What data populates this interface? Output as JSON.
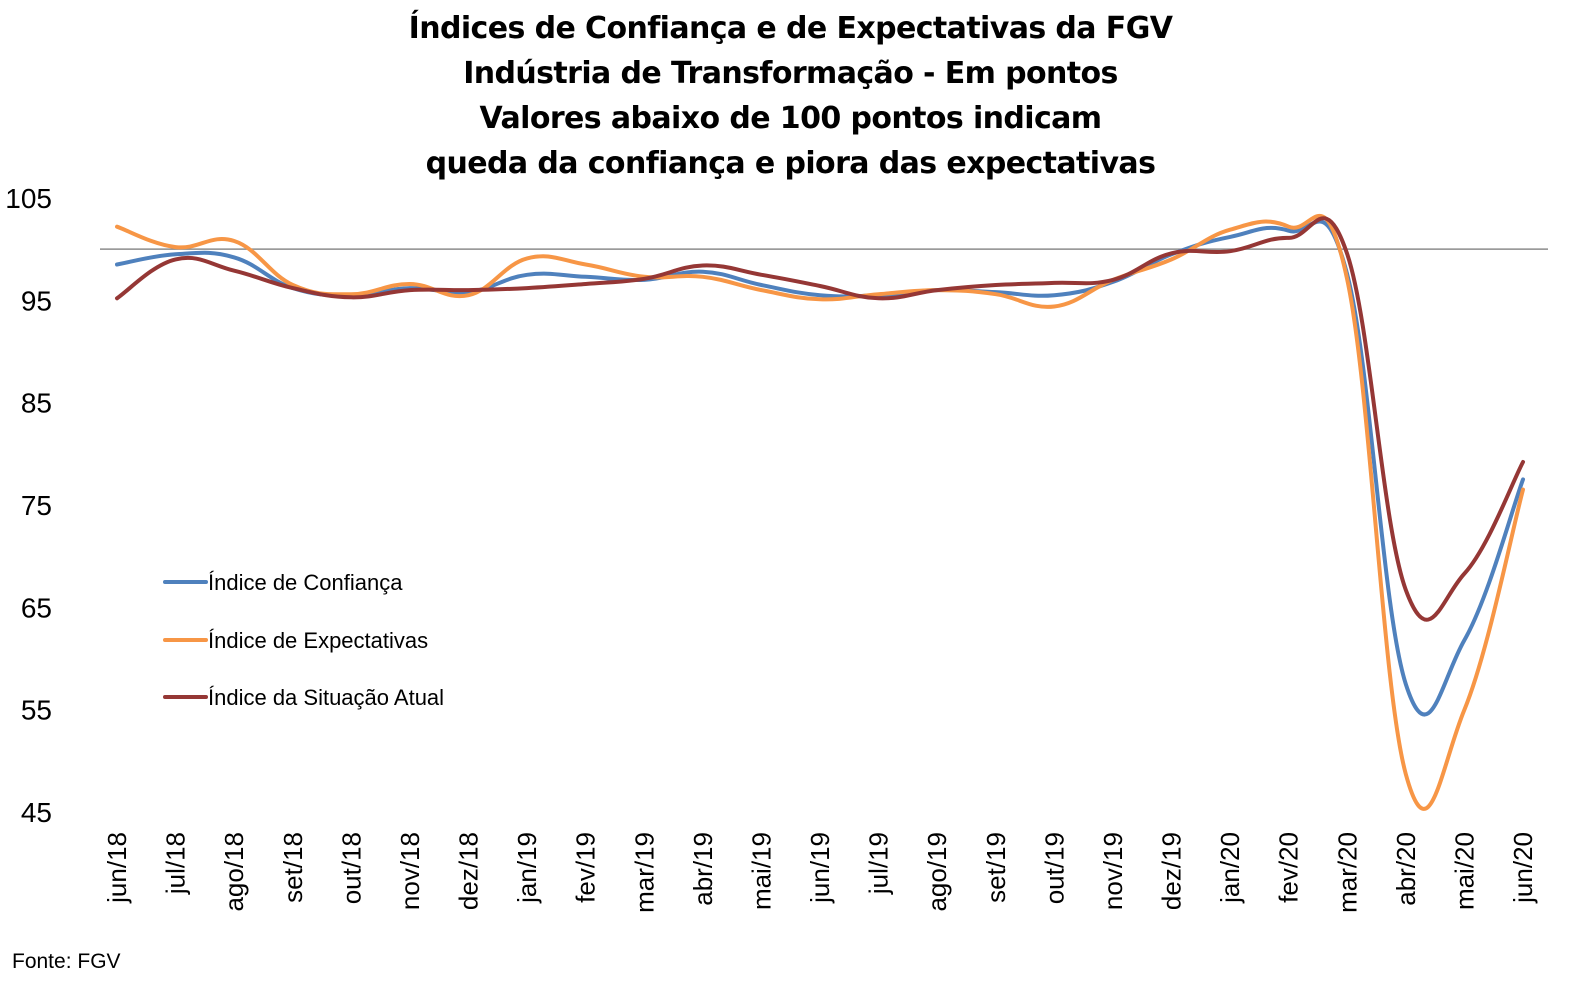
{
  "chart_data": {
    "type": "line",
    "title_lines": [
      "Índices de Confiança e de Expectativas da FGV",
      "Indústria de Transformação - Em pontos",
      "Valores abaixo de 100 pontos indicam",
      "queda da confiança e piora das expectativas"
    ],
    "xlabel": "",
    "ylabel": "",
    "ylim": [
      45,
      105
    ],
    "y_ticks": [
      105,
      95,
      85,
      75,
      65,
      55,
      45
    ],
    "reference_line": 100,
    "grid": false,
    "legend_placement": "left",
    "categories": [
      "jun/18",
      "jul/18",
      "ago/18",
      "set/18",
      "out/18",
      "nov/18",
      "dez/18",
      "jan/19",
      "fev/19",
      "mar/19",
      "abr/19",
      "mai/19",
      "jun/19",
      "jul/19",
      "ago/19",
      "set/19",
      "out/19",
      "nov/19",
      "dez/19",
      "jan/20",
      "fev/20",
      "mar/20",
      "abr/20",
      "mai/20",
      "jun/20"
    ],
    "series": [
      {
        "name": "Índice de Confiança",
        "color": "#4F81BD",
        "values": [
          98.5,
          99.5,
          99.2,
          96.2,
          95.5,
          96.2,
          95.8,
          97.5,
          97.3,
          97.0,
          97.8,
          96.5,
          95.5,
          95.5,
          96.0,
          95.8,
          95.5,
          96.8,
          99.5,
          101.2,
          101.8,
          97.5,
          57.5,
          61.8,
          77.5
        ]
      },
      {
        "name": "Índice de Expectativas",
        "color": "#F79646",
        "values": [
          102.2,
          100.2,
          100.8,
          96.5,
          95.6,
          96.6,
          95.5,
          99.1,
          98.5,
          97.3,
          97.3,
          96.0,
          95.1,
          95.6,
          96.0,
          95.6,
          94.4,
          97.0,
          99.0,
          101.9,
          102.2,
          97.0,
          48.7,
          55.0,
          76.5
        ]
      },
      {
        "name": "Índice da Situação Atual",
        "color": "#953735",
        "values": [
          95.2,
          99.0,
          97.9,
          96.2,
          95.3,
          96.0,
          96.0,
          96.2,
          96.6,
          97.1,
          98.4,
          97.5,
          96.4,
          95.2,
          96.0,
          96.5,
          96.7,
          97.0,
          99.6,
          99.8,
          101.1,
          99.5,
          66.7,
          68.3,
          79.2
        ]
      }
    ],
    "source": "Fonte: FGV"
  }
}
